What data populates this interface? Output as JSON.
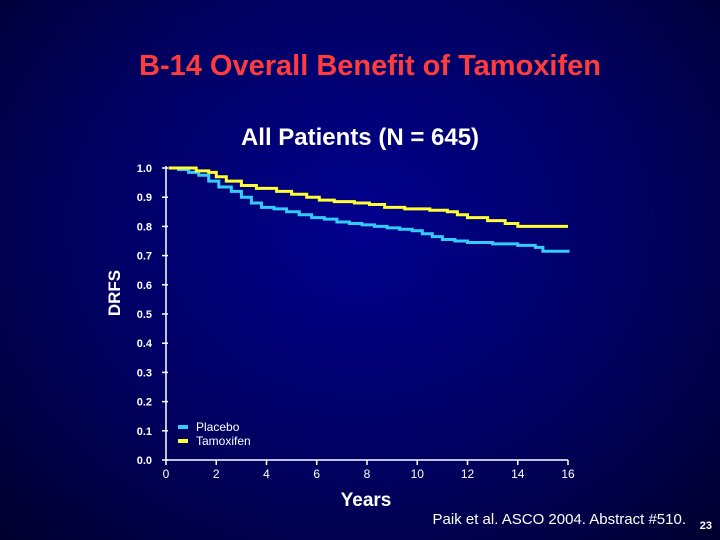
{
  "slide": {
    "title": "B-14 Overall Benefit of Tamoxifen",
    "citation": "Paik et al. ASCO 2004. Abstract #510.",
    "page_number": "23"
  },
  "colors": {
    "title": "#ff3b3b",
    "placebo": "#33ccff",
    "tamoxifen": "#ffff33",
    "axis": "#ffffff"
  },
  "chart_data": {
    "type": "line",
    "title": "All Patients (N = 645)",
    "xlabel": "Years",
    "ylabel": "DRFS",
    "xlim": [
      0,
      16
    ],
    "ylim": [
      0.0,
      1.0
    ],
    "x_ticks": [
      "0",
      "2",
      "4",
      "6",
      "8",
      "10",
      "12",
      "14",
      "16"
    ],
    "y_ticks": [
      "0.0",
      "0.1",
      "0.2",
      "0.3",
      "0.4",
      "0.5",
      "0.6",
      "0.7",
      "0.8",
      "0.9",
      "1.0"
    ],
    "legend": [
      "Placebo",
      "Tamoxifen"
    ],
    "series": [
      {
        "name": "Placebo",
        "color": "#33ccff",
        "points": [
          [
            0.1,
            1.0
          ],
          [
            0.5,
            0.995
          ],
          [
            0.9,
            0.985
          ],
          [
            1.3,
            0.975
          ],
          [
            1.7,
            0.955
          ],
          [
            2.1,
            0.935
          ],
          [
            2.6,
            0.92
          ],
          [
            3.0,
            0.9
          ],
          [
            3.4,
            0.88
          ],
          [
            3.8,
            0.865
          ],
          [
            4.3,
            0.86
          ],
          [
            4.8,
            0.85
          ],
          [
            5.3,
            0.84
          ],
          [
            5.8,
            0.83
          ],
          [
            6.3,
            0.825
          ],
          [
            6.8,
            0.815
          ],
          [
            7.3,
            0.81
          ],
          [
            7.8,
            0.805
          ],
          [
            8.3,
            0.8
          ],
          [
            8.8,
            0.795
          ],
          [
            9.3,
            0.79
          ],
          [
            9.8,
            0.785
          ],
          [
            10.2,
            0.775
          ],
          [
            10.6,
            0.765
          ],
          [
            11.0,
            0.755
          ],
          [
            11.5,
            0.75
          ],
          [
            12.0,
            0.745
          ],
          [
            13.0,
            0.74
          ],
          [
            14.0,
            0.735
          ],
          [
            14.7,
            0.728
          ],
          [
            15.0,
            0.715
          ],
          [
            16.0,
            0.71
          ]
        ]
      },
      {
        "name": "Tamoxifen",
        "color": "#ffff33",
        "points": [
          [
            0.1,
            1.0
          ],
          [
            0.9,
            1.0
          ],
          [
            1.2,
            0.99
          ],
          [
            1.7,
            0.985
          ],
          [
            2.0,
            0.97
          ],
          [
            2.4,
            0.955
          ],
          [
            3.0,
            0.94
          ],
          [
            3.6,
            0.93
          ],
          [
            4.4,
            0.92
          ],
          [
            5.0,
            0.91
          ],
          [
            5.6,
            0.9
          ],
          [
            6.1,
            0.89
          ],
          [
            6.7,
            0.885
          ],
          [
            7.5,
            0.88
          ],
          [
            8.1,
            0.875
          ],
          [
            8.7,
            0.865
          ],
          [
            9.5,
            0.86
          ],
          [
            10.5,
            0.855
          ],
          [
            11.2,
            0.85
          ],
          [
            11.6,
            0.84
          ],
          [
            12.0,
            0.83
          ],
          [
            12.8,
            0.82
          ],
          [
            13.5,
            0.81
          ],
          [
            14.0,
            0.8
          ],
          [
            16.0,
            0.8
          ]
        ]
      }
    ]
  }
}
